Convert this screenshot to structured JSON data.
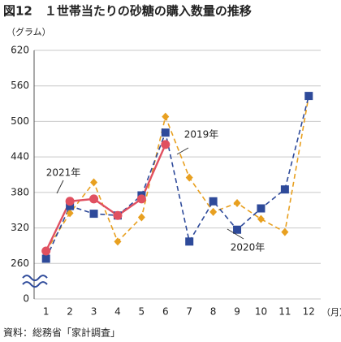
{
  "chart_data": {
    "type": "line",
    "title": "図12　１世帯当たりの砂糖の購入数量の推移",
    "y_label": "（グラム）",
    "x_label": "（月）",
    "source": "資料：総務省「家計調査」",
    "categories": [
      "1",
      "2",
      "3",
      "4",
      "5",
      "6",
      "7",
      "8",
      "9",
      "10",
      "11",
      "12"
    ],
    "series": [
      {
        "name": "2019年",
        "color": "#e8a020",
        "dash": true,
        "marker": "diamond",
        "values": [
          281,
          345,
          397,
          297,
          338,
          508,
          405,
          347,
          362,
          335,
          313,
          543
        ]
      },
      {
        "name": "2020年",
        "color": "#2e4a9a",
        "dash": true,
        "marker": "square",
        "values": [
          268,
          357,
          344,
          341,
          375,
          481,
          297,
          365,
          317,
          353,
          385,
          543
        ]
      },
      {
        "name": "2021年",
        "color": "#e05060",
        "dash": false,
        "marker": "circle",
        "values": [
          281,
          365,
          369,
          341,
          369,
          461,
          null,
          null,
          null,
          null,
          null,
          null
        ]
      }
    ],
    "ylim": [
      0,
      620
    ],
    "yticks": [
      0,
      260,
      320,
      380,
      440,
      500,
      560,
      620
    ],
    "y_axis_break": true,
    "grid": true
  }
}
